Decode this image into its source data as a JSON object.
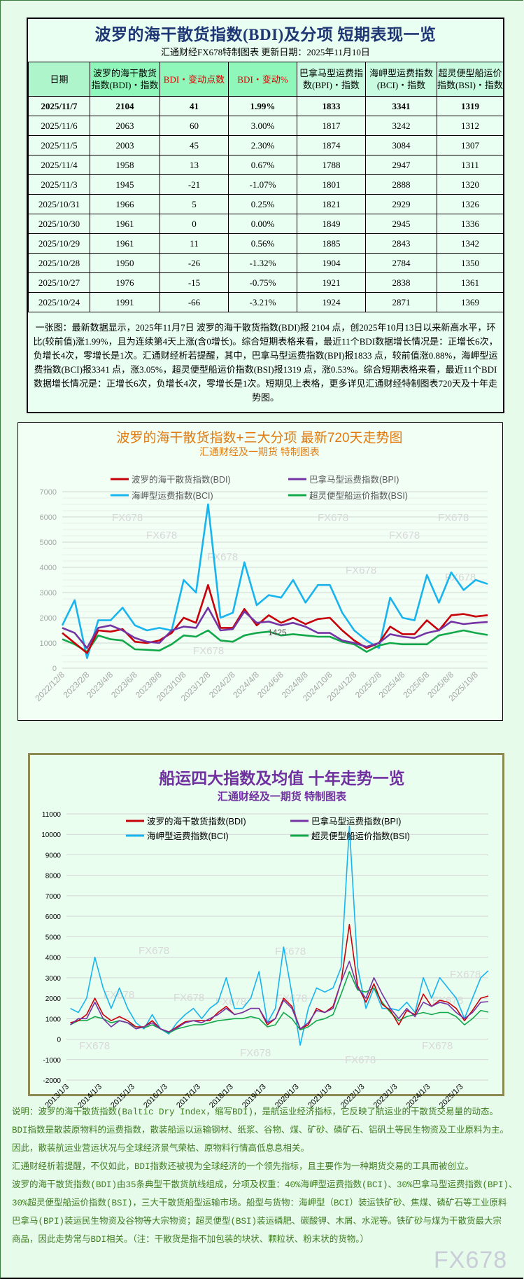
{
  "table": {
    "title": "波罗的海干散货指数(BDI)及分项 短期表现一览",
    "subtitle": "汇通财经FX678特制图表    更新日期：2025年11月10日",
    "headers": [
      "日期",
      "波罗的海干散货指数(BDI)・指数",
      "BDI・变动点数",
      "BDI・变动%",
      "巴拿马型运费指数(BPI)・指数",
      "海岬型运费指数(BCI)・指数",
      "超灵便型船运价指数(BSI)・指数"
    ],
    "rows": [
      [
        "2025/11/7",
        "2104",
        "41",
        "1.99%",
        "1833",
        "3341",
        "1319"
      ],
      [
        "2025/11/6",
        "2063",
        "60",
        "3.00%",
        "1817",
        "3242",
        "1312"
      ],
      [
        "2025/11/5",
        "2003",
        "45",
        "2.30%",
        "1874",
        "3084",
        "1307"
      ],
      [
        "2025/11/4",
        "1958",
        "13",
        "0.67%",
        "1788",
        "2947",
        "1311"
      ],
      [
        "2025/11/3",
        "1945",
        "-21",
        "-1.07%",
        "1801",
        "2888",
        "1320"
      ],
      [
        "2025/10/31",
        "1966",
        "5",
        "0.25%",
        "1821",
        "2929",
        "1326"
      ],
      [
        "2025/10/30",
        "1961",
        "0",
        "0.00%",
        "1849",
        "2945",
        "1336"
      ],
      [
        "2025/10/29",
        "1961",
        "11",
        "0.56%",
        "1885",
        "2843",
        "1342"
      ],
      [
        "2025/10/28",
        "1950",
        "-26",
        "-1.32%",
        "1904",
        "2784",
        "1350"
      ],
      [
        "2025/10/27",
        "1976",
        "-15",
        "-0.75%",
        "1921",
        "2838",
        "1361"
      ],
      [
        "2025/10/24",
        "1991",
        "-66",
        "-3.21%",
        "1924",
        "2871",
        "1369"
      ]
    ],
    "summary": "一张图：最新数据显示，2025年11月7日 波罗的海干散货指数(BDI)报 2104 点，创2025年10月13日以来新高水平，环比(较前值)涨1.99%，且为连续第4天上涨(含0增长)。综合短期表格来看，最近11个BDI数据增长情况是：正增长6次，负增长4次，零增长是1次。汇通财经析若提醒，其中，巴拿马型运费指数(BPI)报1833 点，较前值涨0.88%，海岬型运费指数(BCI)报3341 点，涨3.05%，超灵便型船运价指数(BSI)报1319 点，涨0.53%。综合短期表格来看，最近11个BDI数据增长情况是：正增长6次，负增长4次，零增长是1次。短期见上表格，更多详见汇通财经特制图表720天及十年走势图。"
  },
  "watermark": "FX678",
  "chart_data": [
    {
      "type": "line",
      "title": "波罗的海干散货指数+三大分项  最新720天走势图",
      "subtitle": "汇通财经及一期货  特制图表",
      "title_color": "#e07a10",
      "xlim": [
        "2022-12-08",
        "2025-11-07"
      ],
      "ylim": [
        0,
        7000
      ],
      "y_ticks": [
        "0",
        "1000",
        "2000",
        "3000",
        "4000",
        "5000",
        "6000",
        "7000"
      ],
      "x_ticks": [
        "2022/12/8",
        "2023/2/8",
        "2023/4/8",
        "2023/6/8",
        "2023/8/8",
        "2023/10/8",
        "2023/12/8",
        "2024/2/8",
        "2024/4/8",
        "2024/6/8",
        "2024/8/8",
        "2024/10/8",
        "2024/12/8",
        "2025/2/8",
        "2025/4/8",
        "2025/6/8",
        "2025/8/8",
        "2025/10/8"
      ],
      "grid": true,
      "legend": "top",
      "annotation": "1425",
      "x": [
        "2022-12-08",
        "2023-01-08",
        "2023-02-08",
        "2023-03-08",
        "2023-04-08",
        "2023-05-08",
        "2023-06-08",
        "2023-07-08",
        "2023-08-08",
        "2023-09-08",
        "2023-10-08",
        "2023-11-08",
        "2023-12-08",
        "2024-01-08",
        "2024-02-08",
        "2024-03-08",
        "2024-04-08",
        "2024-05-08",
        "2024-06-08",
        "2024-07-08",
        "2024-08-08",
        "2024-09-08",
        "2024-10-08",
        "2024-11-08",
        "2024-12-08",
        "2025-01-08",
        "2025-02-08",
        "2025-03-08",
        "2025-04-08",
        "2025-05-08",
        "2025-06-08",
        "2025-07-08",
        "2025-08-08",
        "2025-09-08",
        "2025-10-08",
        "2025-11-07"
      ],
      "series": [
        {
          "name": "海岬型运费指数(BCI)",
          "color": "#18b4ee",
          "values": [
            1700,
            2700,
            400,
            1900,
            1900,
            2400,
            1700,
            1500,
            1600,
            1500,
            3500,
            3000,
            6500,
            2000,
            2200,
            4200,
            2500,
            2900,
            2800,
            3500,
            2600,
            3300,
            3300,
            2200,
            1500,
            1100,
            800,
            2800,
            2000,
            1900,
            3700,
            2600,
            3800,
            3100,
            3500,
            3341
          ]
        },
        {
          "name": "超灵便型船运价指数(BSI)",
          "color": "#12a84a",
          "values": [
            1150,
            950,
            650,
            1300,
            1150,
            1100,
            750,
            730,
            700,
            950,
            1300,
            1250,
            1500,
            1100,
            1050,
            1300,
            1400,
            1450,
            1300,
            1350,
            1300,
            1250,
            1250,
            1050,
            950,
            650,
            900,
            1000,
            950,
            950,
            950,
            1300,
            1400,
            1500,
            1400,
            1319
          ]
        },
        {
          "name": "波罗的海干散货指数(BDI)",
          "color": "#c8000a",
          "values": [
            1400,
            1000,
            600,
            1500,
            1450,
            1550,
            1050,
            1000,
            1100,
            1400,
            2000,
            1800,
            3300,
            1600,
            1600,
            2350,
            1700,
            2100,
            1800,
            2000,
            1750,
            1950,
            2000,
            1500,
            1100,
            800,
            1000,
            1650,
            1350,
            1350,
            1900,
            1500,
            2100,
            2150,
            2050,
            2104
          ]
        },
        {
          "name": "巴拿马型运费指数(BPI)",
          "color": "#7434a4",
          "values": [
            1600,
            1400,
            800,
            1600,
            1700,
            1500,
            1200,
            1050,
            1000,
            1500,
            1650,
            1600,
            2400,
            1500,
            1550,
            2250,
            1800,
            1850,
            1700,
            1800,
            1650,
            1400,
            1400,
            1100,
            1000,
            850,
            1000,
            1350,
            1250,
            1200,
            1400,
            1500,
            1850,
            1750,
            1800,
            1833
          ]
        }
      ]
    },
    {
      "type": "line",
      "title": "船运四大指数及均值 十年走势一览",
      "subtitle": "汇通财经及一期货 特制图表",
      "title_color": "#7030a0",
      "xlim": [
        "2013-01-03",
        "2025-11-07"
      ],
      "ylim": [
        -2000,
        11000
      ],
      "y_ticks": [
        "-2000",
        "-1000",
        "0",
        "1000",
        "2000",
        "3000",
        "4000",
        "5000",
        "6000",
        "7000",
        "8000",
        "9000",
        "10000",
        "11000"
      ],
      "x_ticks": [
        "2013/1/3",
        "2014/1/3",
        "2015/1/3",
        "2016/1/3",
        "2017/1/3",
        "2018/1/3",
        "2019/1/3",
        "2020/1/3",
        "2021/1/3",
        "2022/1/3",
        "2023/1/3",
        "2024/1/3",
        "2025/1/3"
      ],
      "grid": true,
      "legend": "top",
      "x": [
        "2013-02-15",
        "2013-05-15",
        "2013-08-15",
        "2013-11-15",
        "2014-02-15",
        "2014-05-15",
        "2014-08-15",
        "2014-11-15",
        "2015-02-15",
        "2015-05-15",
        "2015-08-15",
        "2015-11-15",
        "2016-02-15",
        "2016-05-15",
        "2016-08-15",
        "2016-11-15",
        "2017-02-15",
        "2017-05-15",
        "2017-08-15",
        "2017-11-15",
        "2018-02-15",
        "2018-05-15",
        "2018-08-15",
        "2018-11-15",
        "2019-02-15",
        "2019-05-15",
        "2019-08-15",
        "2019-11-15",
        "2020-02-15",
        "2020-05-15",
        "2020-08-15",
        "2020-11-15",
        "2021-02-15",
        "2021-05-15",
        "2021-08-15",
        "2021-11-15",
        "2022-02-15",
        "2022-05-15",
        "2022-08-15",
        "2022-11-15",
        "2023-02-15",
        "2023-05-15",
        "2023-08-15",
        "2023-11-15",
        "2024-02-15",
        "2024-05-15",
        "2024-08-15",
        "2024-11-15",
        "2025-02-15",
        "2025-05-15",
        "2025-08-15",
        "2025-11-07"
      ],
      "series": [
        {
          "name": "海岬型运费指数(BCI)",
          "color": "#18b4ee",
          "values": [
            1500,
            1300,
            2000,
            4000,
            2500,
            1500,
            2500,
            1500,
            800,
            500,
            1200,
            500,
            250,
            800,
            1200,
            1500,
            1000,
            1500,
            1800,
            3000,
            1500,
            1500,
            2000,
            3300,
            800,
            1500,
            4500,
            2200,
            -300,
            1500,
            2500,
            2300,
            2500,
            3500,
            10400,
            3500,
            1500,
            2500,
            1500,
            1500,
            1400,
            1800,
            1300,
            3000,
            2000,
            3000,
            2500,
            2000,
            1000,
            2000,
            3000,
            3341
          ]
        },
        {
          "name": "超灵便型船运价指数(BSI)",
          "color": "#12a84a",
          "values": [
            700,
            900,
            900,
            1100,
            1000,
            800,
            900,
            800,
            600,
            550,
            700,
            500,
            300,
            500,
            600,
            700,
            700,
            800,
            900,
            950,
            1000,
            1000,
            1100,
            1000,
            600,
            700,
            1300,
            1000,
            450,
            600,
            900,
            1000,
            1200,
            2200,
            3300,
            2400,
            2300,
            2500,
            1800,
            1300,
            900,
            1100,
            1200,
            1300,
            1200,
            1300,
            1300,
            1100,
            700,
            1000,
            1400,
            1319
          ]
        },
        {
          "name": "波罗的海干散货指数(BDI)",
          "color": "#c8000a",
          "values": [
            800,
            900,
            1200,
            2000,
            1200,
            900,
            1100,
            900,
            600,
            600,
            900,
            500,
            350,
            600,
            850,
            900,
            900,
            900,
            1300,
            1600,
            1200,
            1300,
            1500,
            1500,
            700,
            1000,
            2000,
            1600,
            500,
            700,
            1500,
            1300,
            1600,
            2800,
            5600,
            2600,
            1800,
            2700,
            1700,
            1400,
            700,
            1400,
            1200,
            2200,
            1600,
            1900,
            1800,
            1500,
            900,
            1400,
            2000,
            2104
          ]
        },
        {
          "name": "巴拿马型运费指数(BPI)",
          "color": "#7434a4",
          "values": [
            700,
            1000,
            1000,
            1800,
            1000,
            600,
            900,
            800,
            500,
            600,
            800,
            500,
            350,
            550,
            800,
            900,
            800,
            1000,
            1200,
            1500,
            1200,
            1300,
            1500,
            1500,
            800,
            1000,
            1900,
            1500,
            500,
            800,
            1400,
            1300,
            1500,
            2800,
            3800,
            2500,
            2000,
            3000,
            2200,
            1500,
            1000,
            1500,
            1100,
            1800,
            1600,
            1800,
            1700,
            1300,
            1000,
            1300,
            1800,
            1833
          ]
        }
      ]
    }
  ],
  "legend_order": [
    "波罗的海干散货指数(BDI)",
    "巴拿马型运费指数(BPI)",
    "海岬型运费指数(BCI)",
    "超灵便型船运价指数(BSI)"
  ],
  "description": [
    "说明：波罗的海干散货指数(Baltic Dry Index，缩写BDI)，是航运业经济指标，它反映了航运业的干散货交易量的动态。",
    "BDI指数是散装原物料的运费指数，散装船运以运输钢材、纸浆、谷物、煤、矿砂、磷矿石、铝矾土等民生物资及工业原料为主。",
    "因此，散装航运业营运状况与全球经济景气荣枯、原物料行情高低息息相关。",
    "汇通财经析若提醒，不仅如此，BDI指数还被视为全球经济的一个领先指标，且主要作为一种期货交易的工具而被创立。",
    "波罗的海干散货指数(BDI)由35条典型干散货航线组成，分项及权重：40%海岬型运费指数(BCI)、30%巴拿马型运费指数(BPI)、",
    "30%超灵便型船运价指数(BSI)，三大干散货船型运输市场。船型与货物：海岬型（BCI）装运铁矿砂、焦煤、磷矿石等工业原料",
    "巴拿马(BPI)装运民生物资及谷物等大宗物资；超灵便型(BSI)装运磷肥、碳酸钾、木屑、水泥等。铁矿砂与煤为干散货最大宗",
    "商品，因此走势常与BDI相关。（注：干散货是指不加包装的块状、颗粒状、粉末状的货物。）"
  ],
  "logo": "FX678"
}
